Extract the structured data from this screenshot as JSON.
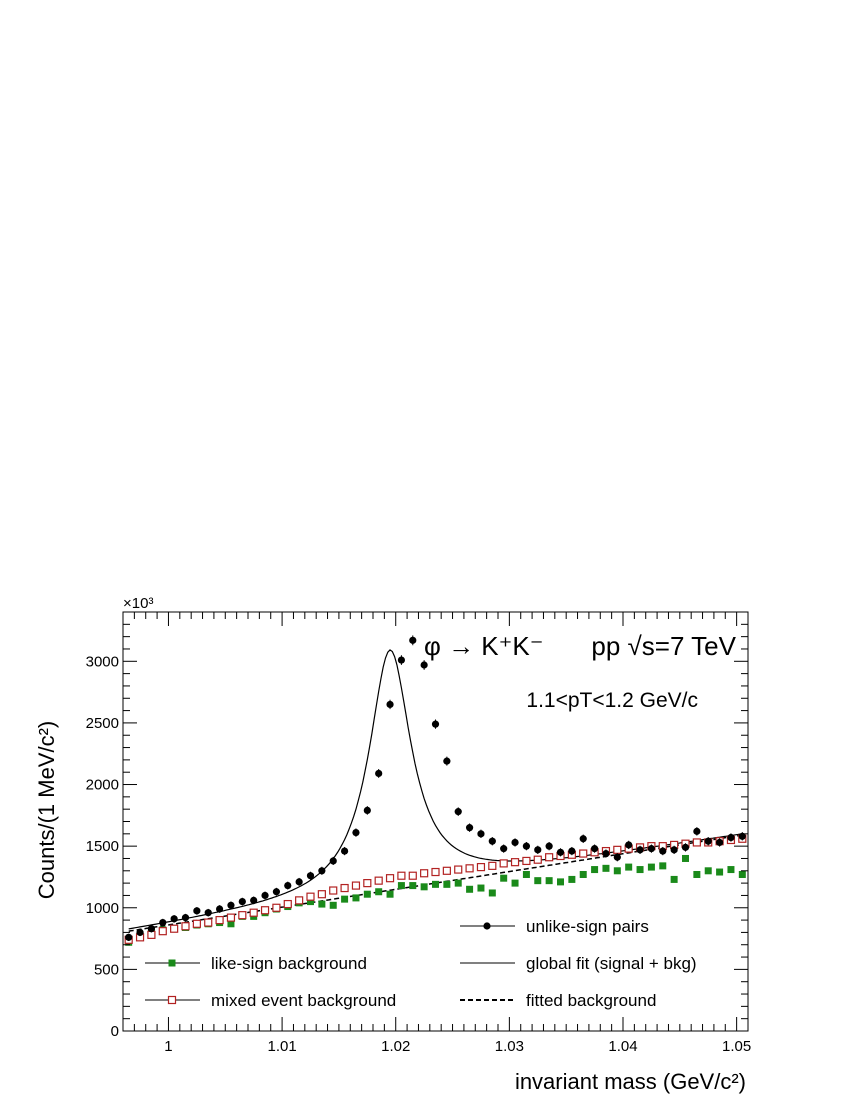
{
  "chart_data": {
    "type": "scatter",
    "xlabel": "invariant mass (GeV/c²)",
    "ylabel": "Counts/(1 MeV/c²)",
    "y_multiplier": "×10³",
    "xlim": [
      0.996,
      1.051
    ],
    "ylim": [
      0,
      3400
    ],
    "x_ticks": [
      1,
      1.01,
      1.02,
      1.03,
      1.04,
      1.05
    ],
    "x_tick_labels": [
      "1",
      "1.01",
      "1.02",
      "1.03",
      "1.04",
      "1.05"
    ],
    "y_ticks": [
      0,
      500,
      1000,
      1500,
      2000,
      2500,
      3000
    ],
    "y_tick_labels": [
      "0",
      "500",
      "1000",
      "1500",
      "2000",
      "2500",
      "3000"
    ],
    "annotations": {
      "decay": "φ → K⁺K⁻",
      "system": "pp  √s=7 TeV",
      "pt_range": "1.1<pT<1.2 GeV/c"
    },
    "legend_position": "bottom",
    "x": [
      0.9965,
      0.9975,
      0.9985,
      0.9995,
      1.0005,
      1.0015,
      1.0025,
      1.0035,
      1.0045,
      1.0055,
      1.0065,
      1.0075,
      1.0085,
      1.0095,
      1.0105,
      1.0115,
      1.0125,
      1.0135,
      1.0145,
      1.0155,
      1.0165,
      1.0175,
      1.0185,
      1.0195,
      1.0205,
      1.0215,
      1.0225,
      1.0235,
      1.0245,
      1.0255,
      1.0265,
      1.0275,
      1.0285,
      1.0295,
      1.0305,
      1.0315,
      1.0325,
      1.0335,
      1.0345,
      1.0355,
      1.0365,
      1.0375,
      1.0385,
      1.0395,
      1.0405,
      1.0415,
      1.0425,
      1.0435,
      1.0445,
      1.0455,
      1.0465,
      1.0475,
      1.0485,
      1.0495,
      1.0505
    ],
    "series": [
      {
        "name": "unlike-sign pairs",
        "marker": "filled-circle",
        "color": "#000000",
        "values": [
          760,
          800,
          830,
          880,
          910,
          920,
          975,
          960,
          990,
          1020,
          1050,
          1060,
          1100,
          1130,
          1180,
          1210,
          1260,
          1300,
          1380,
          1460,
          1610,
          1790,
          2090,
          2650,
          3010,
          3170,
          2970,
          2490,
          2190,
          1780,
          1650,
          1600,
          1540,
          1480,
          1530,
          1500,
          1470,
          1500,
          1450,
          1460,
          1560,
          1480,
          1440,
          1410,
          1510,
          1470,
          1480,
          1460,
          1470,
          1490,
          1620,
          1540,
          1530,
          1570,
          1580
        ]
      },
      {
        "name": "like-sign background",
        "marker": "filled-square",
        "color": "#1a8a1a",
        "values": [
          720,
          780,
          800,
          820,
          830,
          840,
          860,
          870,
          880,
          870,
          930,
          930,
          960,
          990,
          1010,
          1040,
          1050,
          1030,
          1020,
          1070,
          1080,
          1110,
          1130,
          1110,
          1180,
          1180,
          1170,
          1190,
          1190,
          1200,
          1150,
          1160,
          1120,
          1240,
          1200,
          1270,
          1220,
          1220,
          1210,
          1230,
          1270,
          1310,
          1320,
          1300,
          1330,
          1310,
          1330,
          1340,
          1230,
          1400,
          1270,
          1300,
          1290,
          1310,
          1270
        ]
      },
      {
        "name": "mixed event background",
        "marker": "open-square",
        "color": "#b22222",
        "values": [
          740,
          760,
          780,
          810,
          830,
          850,
          870,
          880,
          900,
          920,
          940,
          960,
          980,
          1000,
          1030,
          1060,
          1090,
          1110,
          1140,
          1160,
          1180,
          1200,
          1220,
          1240,
          1260,
          1260,
          1280,
          1290,
          1300,
          1310,
          1320,
          1330,
          1340,
          1360,
          1370,
          1380,
          1390,
          1410,
          1420,
          1430,
          1440,
          1450,
          1460,
          1470,
          1480,
          1490,
          1500,
          1500,
          1510,
          1520,
          1530,
          1530,
          1540,
          1550,
          1560
        ]
      }
    ],
    "fits": [
      {
        "name": "global fit (signal + bkg)",
        "style": "solid",
        "color": "#000000"
      },
      {
        "name": "fitted background",
        "style": "dashed",
        "color": "#000000"
      }
    ]
  }
}
